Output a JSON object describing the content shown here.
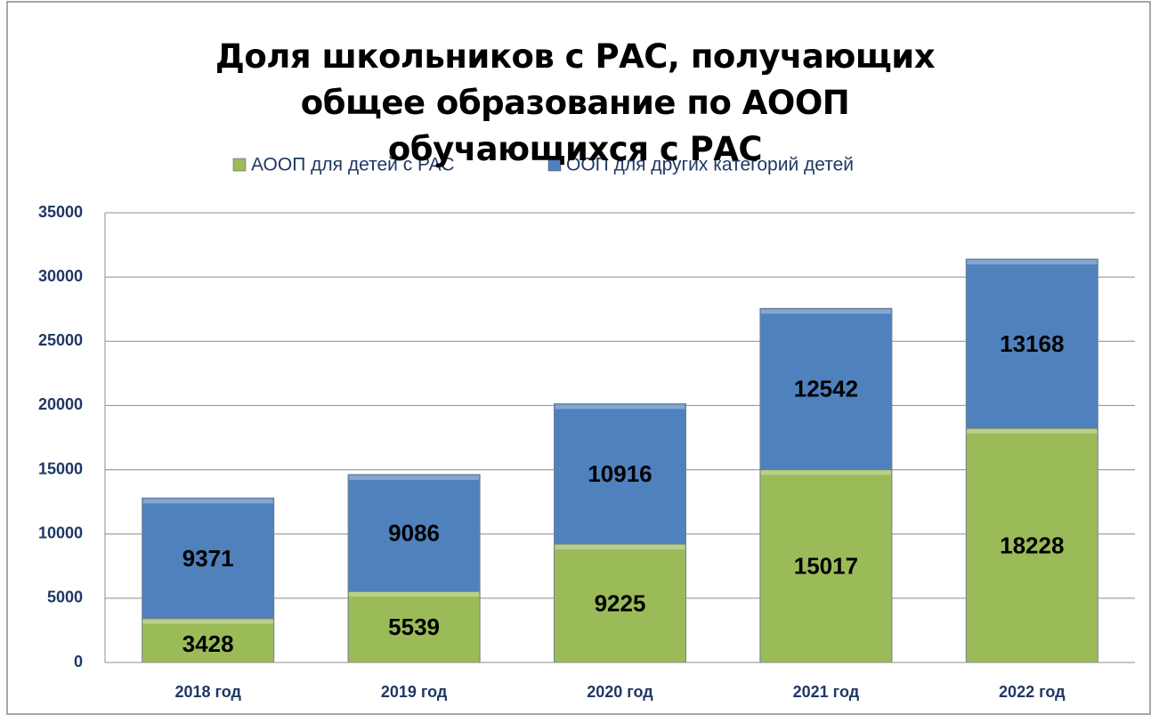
{
  "chart_data": {
    "type": "stacked_bar",
    "title": "Доля школьников с РАС, получающих общее образование по АООП обучающихся с РАС",
    "categories": [
      "2018 год",
      "2019 год",
      "2020 год",
      "2021 год",
      "2022 год"
    ],
    "series": [
      {
        "name": "АООП для детей с РАС",
        "color": "#9bbb59",
        "values": [
          3428,
          5539,
          9225,
          15017,
          18228
        ]
      },
      {
        "name": "ООП для других категорий детей",
        "color": "#4f81bd",
        "values": [
          9371,
          9086,
          10916,
          12542,
          13168
        ]
      }
    ],
    "ylim": [
      0,
      35000
    ],
    "yticks": [
      0,
      5000,
      10000,
      15000,
      20000,
      25000,
      30000,
      35000
    ],
    "grid": true,
    "legend": "top"
  }
}
